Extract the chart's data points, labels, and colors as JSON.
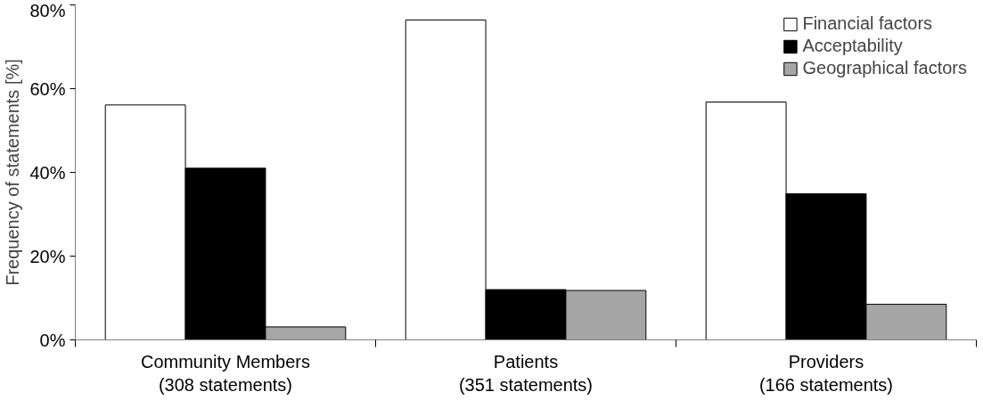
{
  "chart_data": {
    "type": "bar",
    "ylabel": "Frequency of statements [%]",
    "categories": [
      "Community Members\n(308 statements)",
      "Patients\n(351 statements)",
      "Providers\n(166 statements)"
    ],
    "series": [
      {
        "name": "Financial factors",
        "color": "#ffffff",
        "values": [
          56.1,
          76.4,
          56.8
        ]
      },
      {
        "name": "Acceptability",
        "color": "#000000",
        "values": [
          41.0,
          12.0,
          34.9
        ]
      },
      {
        "name": "Geographical factors",
        "color": "#a6a6a6",
        "values": [
          3.1,
          11.8,
          8.5
        ]
      }
    ],
    "ylim": [
      0,
      80
    ],
    "yticks": [
      {
        "value": 0,
        "label": "0%"
      },
      {
        "value": 20,
        "label": "20%"
      },
      {
        "value": 40,
        "label": "40%"
      },
      {
        "value": 60,
        "label": "60%"
      },
      {
        "value": 80,
        "label": "80%"
      }
    ],
    "grid": false,
    "legend": "top right"
  }
}
